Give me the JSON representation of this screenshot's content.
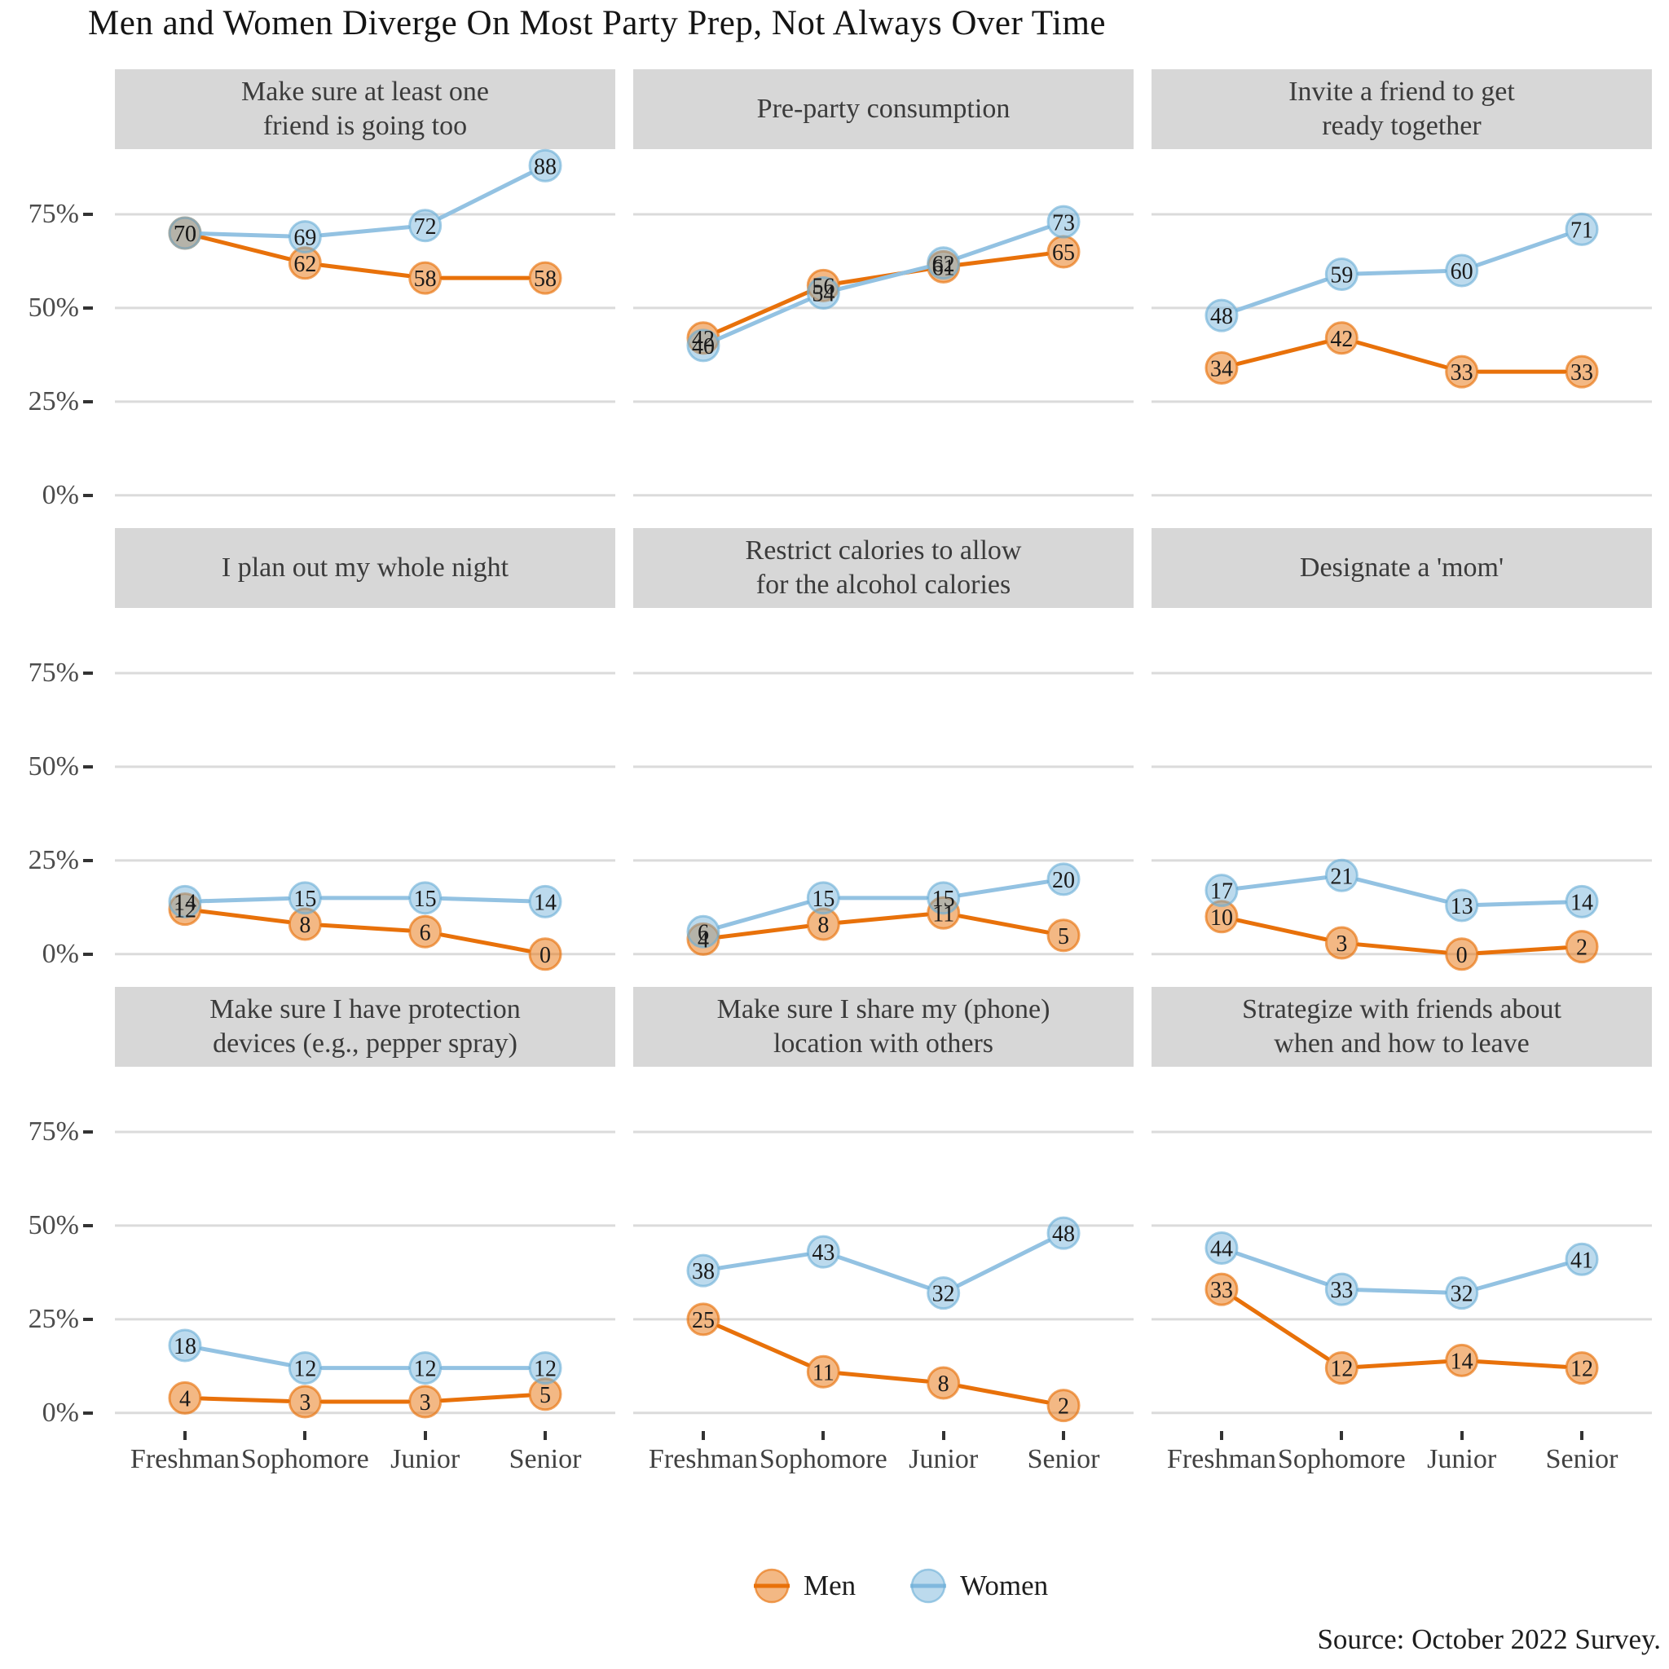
{
  "title": "Men and Women Diverge On Most Party Prep, Not Always Over Time",
  "source": "Source: October 2022 Survey.",
  "legend": {
    "men": "Men",
    "women": "Women"
  },
  "colors": {
    "men_line": "#e8710a",
    "men_point_fill": "rgba(232,113,10,0.5)",
    "men_point_stroke": "rgba(232,113,10,0.65)",
    "women_line": "#93c2e2",
    "women_point_fill": "rgba(107,174,214,0.45)",
    "women_point_stroke": "rgba(107,174,214,0.62)",
    "strip_bg": "#d7d7d7",
    "gridline": "#dbdbdb",
    "label_text": "#1a1a1a"
  },
  "chart_data": {
    "type": "line",
    "categories": [
      "Freshman",
      "Sophomore",
      "Junior",
      "Senior"
    ],
    "y_ticks": [
      "75%",
      "50%",
      "25%",
      "0%"
    ],
    "y_tick_values": [
      75,
      50,
      25,
      0
    ],
    "ylim": [
      -4.4,
      92.4
    ],
    "grid": "horizontal-only",
    "legend_position": "bottom",
    "series_names": [
      "Men",
      "Women"
    ],
    "facets": [
      {
        "label": "Make sure at least one\nfriend is going too",
        "men": [
          70,
          62,
          58,
          58
        ],
        "women": [
          70,
          69,
          72,
          88
        ]
      },
      {
        "label": "Pre-party consumption",
        "men": [
          42,
          56,
          61,
          65
        ],
        "women": [
          40,
          54,
          62,
          73
        ]
      },
      {
        "label": "Invite a friend to get\nready together",
        "men": [
          34,
          42,
          33,
          33
        ],
        "women": [
          48,
          59,
          60,
          71
        ]
      },
      {
        "label": "I plan out my whole night",
        "men": [
          12,
          8,
          6,
          0
        ],
        "women": [
          14,
          15,
          15,
          14
        ]
      },
      {
        "label": "Restrict calories to allow\nfor the alcohol calories",
        "men": [
          4,
          8,
          11,
          5
        ],
        "women": [
          6,
          15,
          15,
          20
        ]
      },
      {
        "label": "Designate a 'mom'",
        "men": [
          10,
          3,
          0,
          2
        ],
        "women": [
          17,
          21,
          13,
          14
        ]
      },
      {
        "label": "Make sure I have protection\ndevices (e.g., pepper spray)",
        "men": [
          4,
          3,
          3,
          5
        ],
        "women": [
          18,
          12,
          12,
          12
        ]
      },
      {
        "label": "Make sure I share my (phone)\nlocation with others",
        "men": [
          25,
          11,
          8,
          2
        ],
        "women": [
          38,
          43,
          32,
          48
        ]
      },
      {
        "label": "Strategize with friends about\nwhen and how to leave",
        "men": [
          33,
          12,
          14,
          12
        ],
        "women": [
          44,
          33,
          32,
          41
        ]
      }
    ]
  }
}
